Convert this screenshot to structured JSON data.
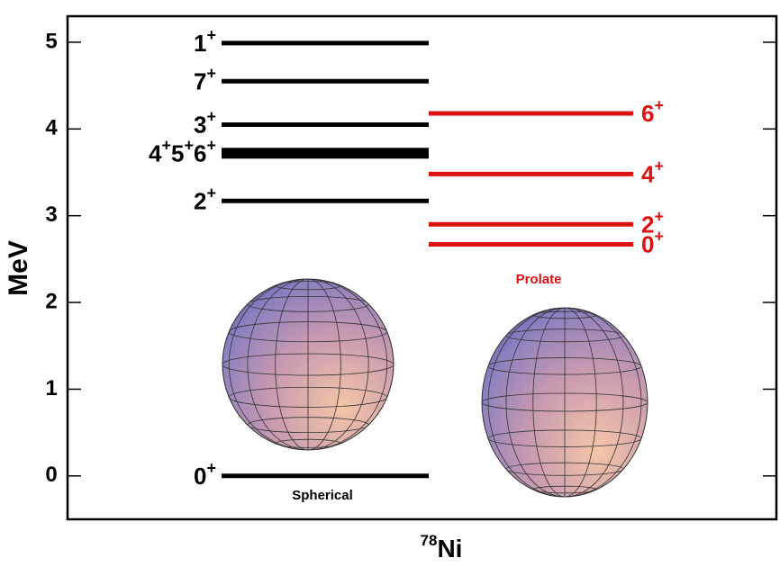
{
  "chart_data": {
    "type": "level_scheme",
    "y_label": "MeV",
    "x_label": {
      "mass": "78",
      "element": "Ni"
    },
    "ylim": [
      -0.5,
      5.3
    ],
    "yticks": [
      0,
      1,
      2,
      3,
      4,
      5
    ],
    "series": [
      {
        "name": "Spherical",
        "color": "#000000",
        "values": [
          0,
          3.17,
          3.72,
          4.05,
          4.55,
          4.99
        ],
        "labels": [
          "0+",
          "2+",
          "4+5+6+",
          "3+",
          "7+",
          "1+"
        ]
      },
      {
        "name": "Prolate",
        "color": "#dd1111",
        "values": [
          2.67,
          2.9,
          3.48,
          4.18
        ],
        "labels": [
          "0+",
          "2+",
          "4+",
          "6+"
        ]
      }
    ]
  }
}
